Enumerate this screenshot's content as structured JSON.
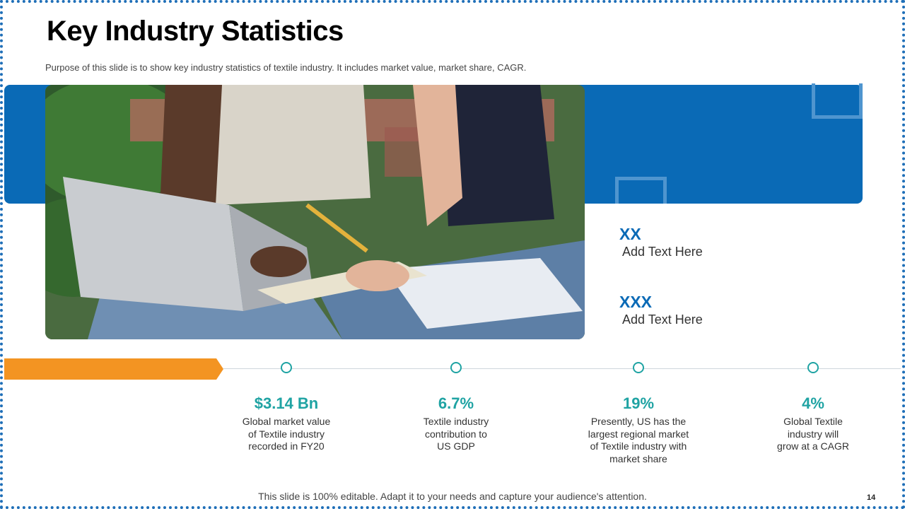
{
  "slide": {
    "title": "Key Industry Statistics",
    "subtitle": "Purpose of this slide is to show key industry statistics of textile industry. It includes market value, market share, CAGR.",
    "footer": "This slide is 100% editable. Adapt it to your needs and capture your audience's attention.",
    "page_number": "14"
  },
  "info_blocks": [
    {
      "heading": "XX",
      "text": "Add Text Here"
    },
    {
      "heading": "XXX",
      "text": "Add Text Here"
    }
  ],
  "stats": [
    {
      "value": "$3.14 Bn",
      "description": "Global market value\nof Textile industry\nrecorded in FY20"
    },
    {
      "value": "6.7%",
      "description": "Textile industry\ncontribution to\nUS GDP"
    },
    {
      "value": "19%",
      "description": "Presently, US has the\nlargest regional market\nof Textile industry with\nmarket share"
    },
    {
      "value": "4%",
      "description": "Global Textile\nindustry will\ngrow at a CAGR"
    }
  ],
  "colors": {
    "accent_blue": "#0a6ab6",
    "accent_teal": "#1fa3a3",
    "accent_orange": "#f39422"
  }
}
